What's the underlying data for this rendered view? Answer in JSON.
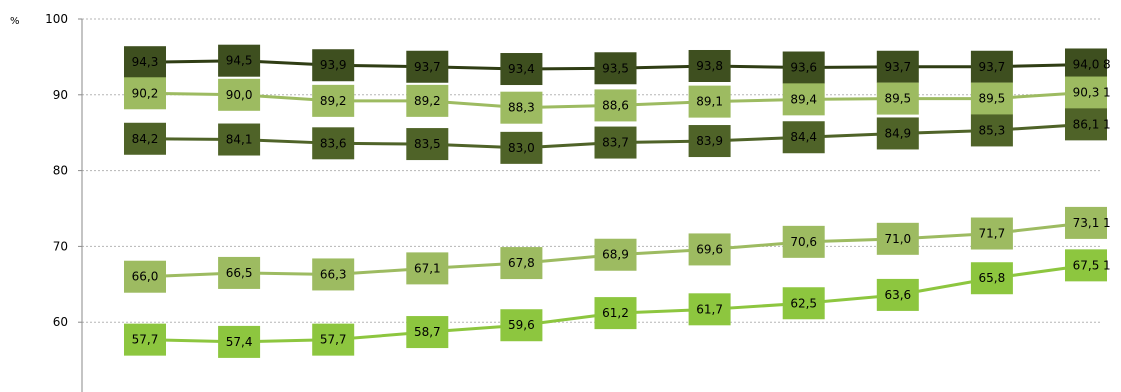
{
  "chart_data": {
    "type": "line",
    "unit_label": "%",
    "ylim": [
      50,
      100
    ],
    "yticks": [
      "50",
      "60",
      "70",
      "80",
      "90",
      "100"
    ],
    "grid": true,
    "colors": {
      "dark": "#3e4f1f",
      "medium": "#9dbb61",
      "bright": "#8dc63f"
    },
    "series": [
      {
        "values": [
          94.3,
          94.5,
          93.9,
          93.7,
          93.4,
          93.5,
          93.8,
          93.6,
          93.7,
          93.7,
          94.0
        ],
        "labels": [
          "94,3",
          "94,5",
          "93,9",
          "93,7",
          "93,4",
          "93,5",
          "93,8",
          "93,6",
          "93,7",
          "93,7",
          "94,0"
        ],
        "line_color": "#2f3d14",
        "box_color": "#3e4f1f",
        "end_text": "8"
      },
      {
        "values": [
          90.2,
          90.0,
          89.2,
          89.2,
          88.3,
          88.6,
          89.1,
          89.4,
          89.5,
          89.5,
          90.3
        ],
        "labels": [
          "90,2",
          "90,0",
          "89,2",
          "89,2",
          "88,3",
          "88,6",
          "89,1",
          "89,4",
          "89,5",
          "89,5",
          "90,3"
        ],
        "line_color": "#9dbb61",
        "box_color": "#9dbb61",
        "end_text": "1"
      },
      {
        "values": [
          84.2,
          84.1,
          83.6,
          83.5,
          83.0,
          83.7,
          83.9,
          84.4,
          84.9,
          85.3,
          86.1
        ],
        "labels": [
          "84,2",
          "84,1",
          "83,6",
          "83,5",
          "83,0",
          "83,7",
          "83,9",
          "84,4",
          "84,9",
          "85,3",
          "86,1"
        ],
        "line_color": "#4f6328",
        "box_color": "#4f6328",
        "end_text": "1"
      },
      {
        "values": [
          66.0,
          66.5,
          66.3,
          67.1,
          67.8,
          68.9,
          69.6,
          70.6,
          71.0,
          71.7,
          73.1
        ],
        "labels": [
          "66,0",
          "66,5",
          "66,3",
          "67,1",
          "67,8",
          "68,9",
          "69,6",
          "70,6",
          "71,0",
          "71,7",
          "73,1"
        ],
        "line_color": "#9dbb61",
        "box_color": "#9dbb61",
        "end_text": "1"
      },
      {
        "values": [
          57.7,
          57.4,
          57.7,
          58.7,
          59.6,
          61.2,
          61.7,
          62.5,
          63.6,
          65.8,
          67.5
        ],
        "labels": [
          "57,7",
          "57,4",
          "57,7",
          "58,7",
          "59,6",
          "61,2",
          "61,7",
          "62,5",
          "63,6",
          "65,8",
          "67,5"
        ],
        "line_color": "#8dc63f",
        "box_color": "#8dc63f",
        "end_text": "1"
      }
    ]
  }
}
